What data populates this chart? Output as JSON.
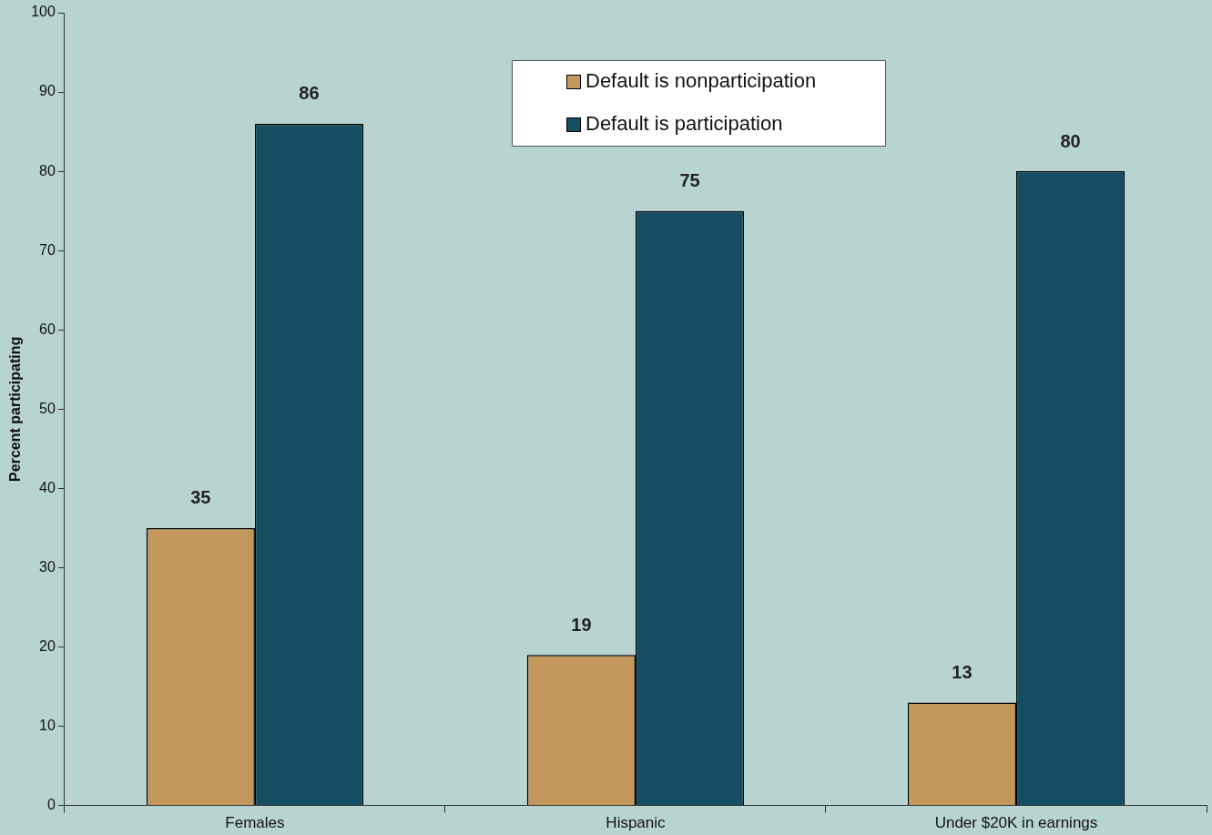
{
  "chart_data": {
    "type": "bar",
    "ylabel": "Percent participating",
    "categories": [
      "Females",
      "Hispanic",
      "Under $20K in earnings"
    ],
    "series": [
      {
        "name": "Default is nonparticipation",
        "color": "#c4975c",
        "values": [
          35,
          19,
          13
        ]
      },
      {
        "name": "Default is participation",
        "color": "#154e63",
        "values": [
          86,
          75,
          80
        ]
      }
    ],
    "ylim": [
      0,
      100
    ],
    "yticks": [
      0,
      10,
      20,
      30,
      40,
      50,
      60,
      70,
      80,
      90,
      100
    ],
    "grid": false,
    "legend": "top",
    "data_labels": true
  }
}
